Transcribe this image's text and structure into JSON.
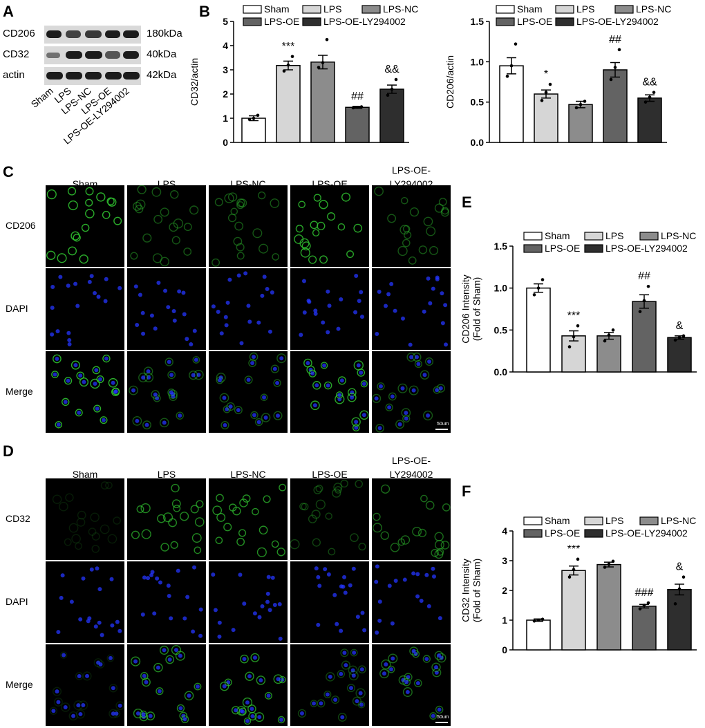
{
  "panels": {
    "A": {
      "label": "A",
      "rows": [
        {
          "name": "CD206",
          "size": "180kDa"
        },
        {
          "name": "CD32",
          "size": "40kDa"
        },
        {
          "name": "actin",
          "size": "42kDa"
        }
      ],
      "lanes": [
        "Sham",
        "LPS",
        "LPS-NC",
        "LPS-OE",
        "LPS-OE-LY294002"
      ]
    },
    "B": {
      "label": "B"
    },
    "C": {
      "label": "C",
      "columns": [
        "Sham",
        "LPS",
        "LPS-NC",
        "LPS-OE",
        "LPS-OE-\nLY294002"
      ],
      "rows": [
        "CD206",
        "DAPI",
        "Merge"
      ],
      "scale": "50um"
    },
    "D": {
      "label": "D",
      "columns": [
        "Sham",
        "LPS",
        "LPS-NC",
        "LPS-OE",
        "LPS-OE-\nLY294002"
      ],
      "rows": [
        "CD32",
        "DAPI",
        "Merge"
      ],
      "scale": "50um"
    },
    "E": {
      "label": "E"
    },
    "F": {
      "label": "F"
    }
  },
  "legend": [
    "Sham",
    "LPS",
    "LPS-NC",
    "LPS-OE",
    "LPS-OE-LY294002"
  ],
  "colors": {
    "bars": [
      "#ffffff",
      "#d6d6d6",
      "#8c8c8c",
      "#636363",
      "#2e2e2e"
    ],
    "green_stain": "#2fbf2f",
    "blue_stain": "#2436ff"
  },
  "chart_data": [
    {
      "id": "B1",
      "type": "bar",
      "categories": [
        "Sham",
        "LPS",
        "LPS-NC",
        "LPS-OE",
        "LPS-OE-LY294002"
      ],
      "values": [
        1.0,
        3.18,
        3.32,
        1.45,
        2.2
      ],
      "errors": [
        0.1,
        0.18,
        0.28,
        0.04,
        0.17
      ],
      "points": [
        [
          0.95,
          1.0,
          1.12
        ],
        [
          2.95,
          3.2,
          3.55
        ],
        [
          3.1,
          3.3,
          4.25
        ],
        [
          1.43,
          1.45,
          1.47
        ],
        [
          1.95,
          2.2,
          2.6
        ]
      ],
      "annotations": [
        "",
        "***",
        "",
        "##",
        "&&"
      ],
      "ylabel": "CD32/actin",
      "ylim": [
        0,
        5
      ],
      "yticks": [
        "0",
        "1",
        "2",
        "3",
        "4",
        "5"
      ]
    },
    {
      "id": "B2",
      "type": "bar",
      "categories": [
        "Sham",
        "LPS",
        "LPS-NC",
        "LPS-OE",
        "LPS-OE-LY294002"
      ],
      "values": [
        0.95,
        0.6,
        0.47,
        0.9,
        0.55
      ],
      "errors": [
        0.1,
        0.05,
        0.04,
        0.09,
        0.04
      ],
      "points": [
        [
          0.82,
          0.95,
          1.22
        ],
        [
          0.52,
          0.62,
          0.72
        ],
        [
          0.43,
          0.47,
          0.51
        ],
        [
          0.78,
          0.93,
          1.15
        ],
        [
          0.5,
          0.56,
          0.62
        ]
      ],
      "annotations": [
        "",
        "*",
        "",
        "##",
        "&&"
      ],
      "ylabel": "CD206/actin",
      "ylim": [
        0,
        1.5
      ],
      "yticks": [
        "0.0",
        "0.5",
        "1.0",
        "1.5"
      ]
    },
    {
      "id": "E",
      "type": "bar",
      "categories": [
        "Sham",
        "LPS",
        "LPS-NC",
        "LPS-OE",
        "LPS-OE-LY294002"
      ],
      "values": [
        1.0,
        0.43,
        0.43,
        0.84,
        0.41
      ],
      "errors": [
        0.05,
        0.06,
        0.04,
        0.08,
        0.02
      ],
      "points": [
        [
          0.92,
          1.0,
          1.1
        ],
        [
          0.3,
          0.42,
          0.55
        ],
        [
          0.37,
          0.44,
          0.5
        ],
        [
          0.72,
          0.85,
          1.02
        ],
        [
          0.38,
          0.41,
          0.43
        ]
      ],
      "annotations": [
        "",
        "***",
        "",
        "##",
        "&"
      ],
      "ylabel": "CD206 Intensity\n(Fold of Sham)",
      "ylim": [
        0,
        1.5
      ],
      "yticks": [
        "0.0",
        "0.5",
        "1.0",
        "1.5"
      ]
    },
    {
      "id": "F",
      "type": "bar",
      "categories": [
        "Sham",
        "LPS",
        "LPS-NC",
        "LPS-OE",
        "LPS-OE-LY294002"
      ],
      "values": [
        1.0,
        2.67,
        2.87,
        1.47,
        2.03
      ],
      "errors": [
        0.04,
        0.15,
        0.08,
        0.06,
        0.18
      ],
      "points": [
        [
          0.97,
          1.0,
          1.03
        ],
        [
          2.45,
          2.7,
          3.05
        ],
        [
          2.78,
          2.88,
          2.98
        ],
        [
          1.38,
          1.5,
          1.58
        ],
        [
          1.55,
          2.05,
          2.45
        ]
      ],
      "annotations": [
        "",
        "***",
        "",
        "###",
        "&"
      ],
      "ylabel": "CD32 Intensity\n(Fold of Sham)",
      "ylim": [
        0,
        4
      ],
      "yticks": [
        "0",
        "1",
        "2",
        "3",
        "4"
      ]
    }
  ]
}
